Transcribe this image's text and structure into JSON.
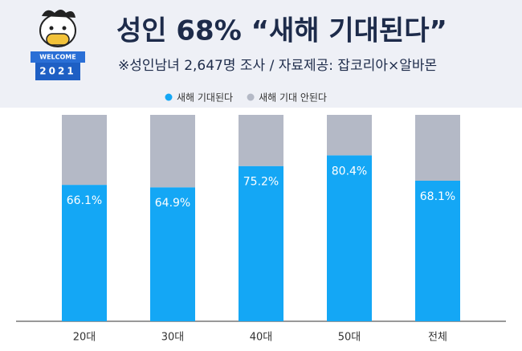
{
  "chart_data": {
    "type": "stacked_bar",
    "title": "성인 68% “새해 기대된다”",
    "subtitle": "※성인남녀 2,647명 조사 / 자료제공: 잡코리아×알바몬",
    "annotations": [
      "WELCOME",
      "2021"
    ],
    "categories": [
      "20대",
      "30대",
      "40대",
      "50대",
      "전체"
    ],
    "series": [
      {
        "name": "새해 기대된다",
        "color": "#14a7f5",
        "values": [
          66.1,
          64.9,
          75.2,
          80.4,
          68.1
        ],
        "value_labels": [
          "66.1%",
          "64.9%",
          "75.2%",
          "80.4%",
          "68.1%"
        ]
      },
      {
        "name": "새해 기대 안된다",
        "color": "#b4b9c6",
        "values": [
          33.9,
          35.1,
          24.8,
          19.6,
          31.9
        ]
      }
    ],
    "ylim": [
      0,
      100
    ]
  }
}
